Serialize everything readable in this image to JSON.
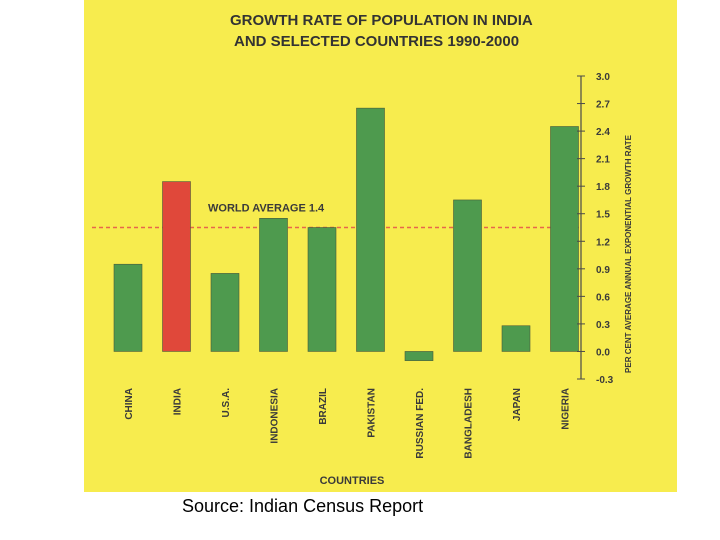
{
  "chart_data": {
    "type": "bar",
    "title_lines": [
      "GROWTH RATE OF POPULATION IN INDIA",
      "AND SELECTED COUNTRIES 1990-2000"
    ],
    "categories": [
      "CHINA",
      "INDIA",
      "U.S.A.",
      "INDONESIA",
      "BRAZIL",
      "PAKISTAN",
      "RUSSIAN FED.",
      "BANGLADESH",
      "JAPAN",
      "NIGERIA"
    ],
    "values": [
      0.95,
      1.85,
      0.85,
      1.45,
      1.35,
      2.65,
      -0.1,
      1.65,
      0.28,
      2.45
    ],
    "highlight": "INDIA",
    "xlabel": "COUNTRIES",
    "ylabel": "PER CENT AVERAGE ANNUAL EXPONENTIAL GROWTH RATE",
    "ylim": [
      -0.3,
      3.0
    ],
    "yticks": [
      "3.0",
      "2.7",
      "2.4",
      "2.1",
      "1.8",
      "1.5",
      "1.2",
      "0.9",
      "0.6",
      "0.3",
      "0.0",
      "-0.3"
    ],
    "reference_line": {
      "label": "WORLD AVERAGE 1.4",
      "value": 1.35
    },
    "y_axis_side": "right",
    "grid": false,
    "colors": {
      "bar": "#4e9a4e",
      "highlight": "#e0483a",
      "reference": "#e8664a",
      "background": "#f7ec4e"
    }
  },
  "caption": "Source: Indian Census Report"
}
